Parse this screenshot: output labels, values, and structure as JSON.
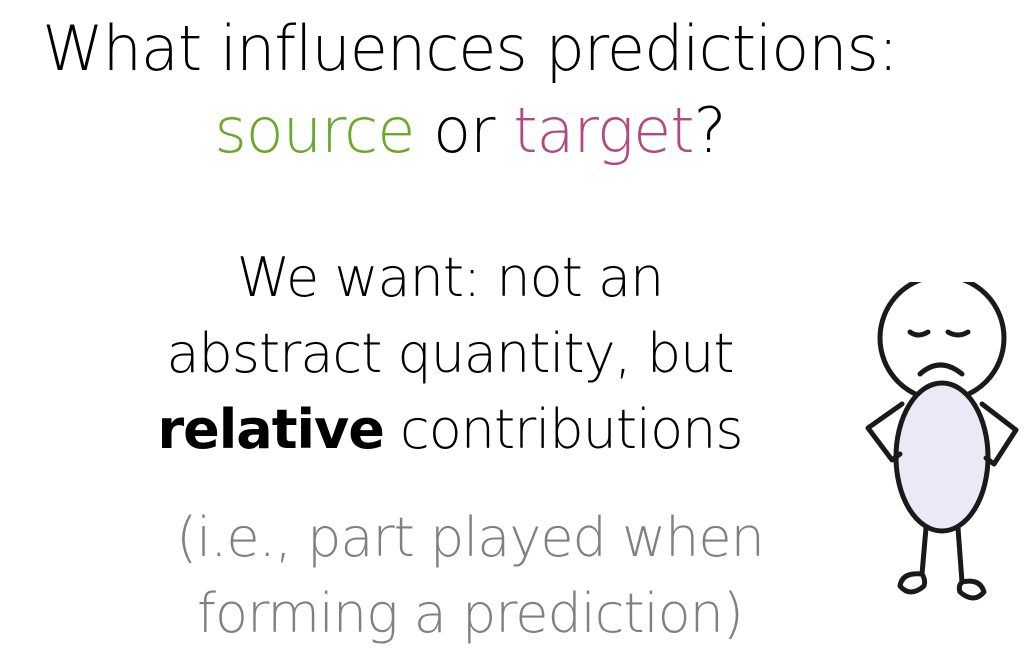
{
  "title": {
    "line1": "What influences predictions:",
    "source_word": "source",
    "or_word": " or ",
    "target_word": "target",
    "question_mark": "?"
  },
  "body": {
    "line1": "We want: not an",
    "line2": "abstract quantity, but",
    "bold_word": "relative",
    "line3_rest": " contributions"
  },
  "note": {
    "line1": "(i.e., part played when",
    "line2": "forming a prediction)"
  },
  "colors": {
    "source": "#6aa829",
    "target": "#b14a82",
    "note_gray": "#808080",
    "figure_body": "#ebe9f5"
  },
  "figure": {
    "icon": "sad-stick-figure-icon"
  }
}
